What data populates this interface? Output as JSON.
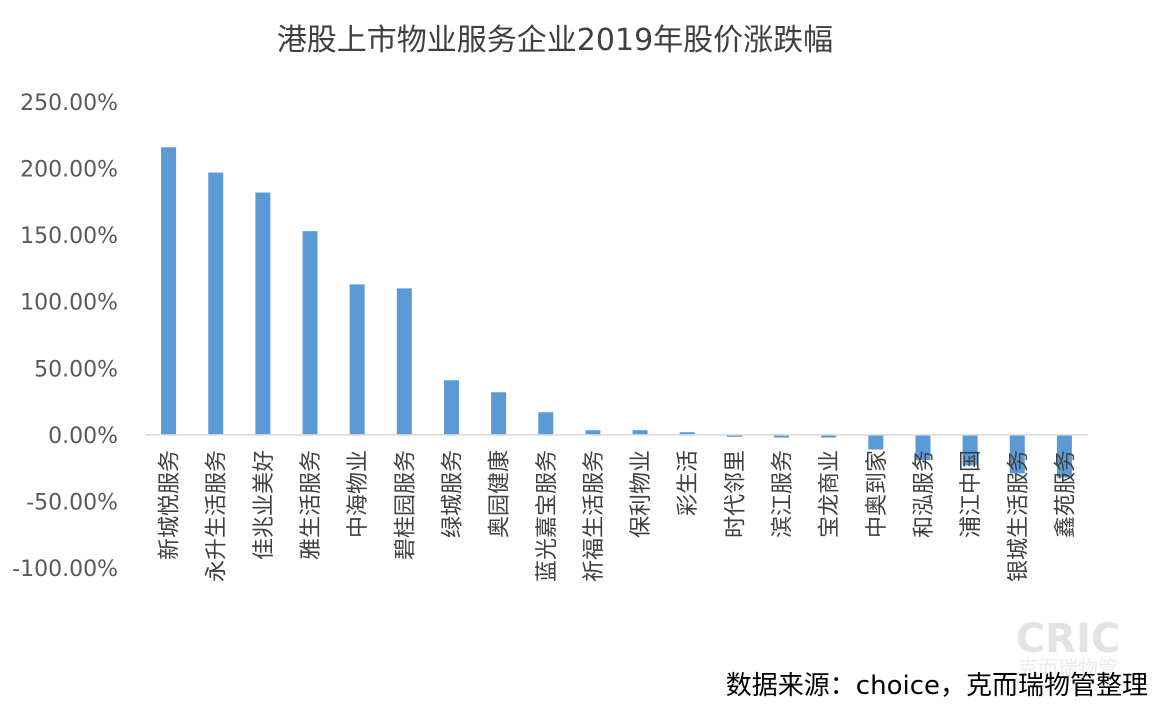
{
  "chart_data": {
    "type": "bar",
    "title": "港股上市物业服务企业2019年股价涨跌幅",
    "xlabel": "",
    "ylabel": "",
    "categories": [
      "新城悦服务",
      "永升生活服务",
      "佳兆业美好",
      "雅生活服务",
      "中海物业",
      "碧桂园服务",
      "绿城服务",
      "奥园健康",
      "蓝光嘉宝服务",
      "祈福生活服务",
      "保利物业",
      "彩生活",
      "时代邻里",
      "滨江服务",
      "宝龙商业",
      "中奥到家",
      "和泓服务",
      "浦江中国",
      "银城生活服务",
      "鑫苑服务"
    ],
    "values": [
      216,
      197,
      182,
      153,
      113,
      110,
      41,
      32,
      17,
      3.5,
      3.5,
      2,
      -1.5,
      -2,
      -2,
      -11,
      -19,
      -23,
      -29,
      -32
    ],
    "ylim": [
      -100,
      250
    ],
    "yticks": [
      -100,
      -50,
      0,
      50,
      100,
      150,
      200,
      250
    ],
    "ytick_labels": [
      "-100.00%",
      "-50.00%",
      "0.00%",
      "50.00%",
      "100.00%",
      "150.00%",
      "200.00%",
      "250.00%"
    ],
    "bar_color": "#5b9bd5",
    "grid": false,
    "legend": "none"
  },
  "source": "数据来源：choice，克而瑞物管整理",
  "watermark": {
    "main": "CRIC",
    "sub": "克而瑞物管"
  }
}
